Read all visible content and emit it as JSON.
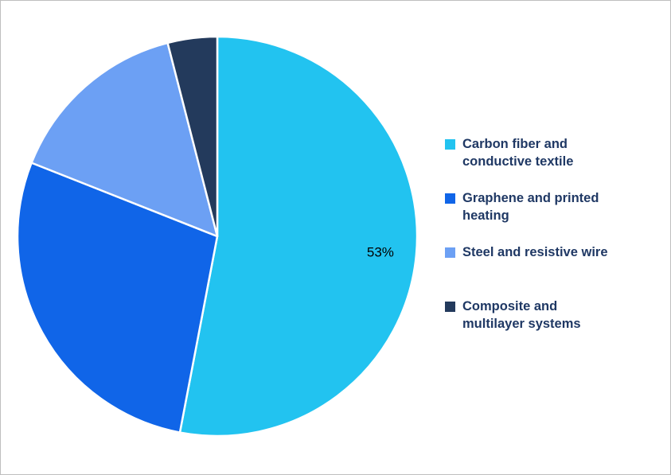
{
  "chart_data": {
    "type": "pie",
    "title": "",
    "start_angle_deg": 0,
    "direction": "clockwise",
    "legend_position": "right",
    "data_label_color": "#000000",
    "slice_border_color": "#ffffff",
    "slices": [
      {
        "label": "Carbon fiber and conductive textile",
        "value": 53,
        "color": "#22C3F0",
        "data_label": "53%"
      },
      {
        "label": "Graphene and printed heating",
        "value": 28,
        "color": "#1065E8",
        "data_label": ""
      },
      {
        "label": "Steel and resistive wire",
        "value": 15,
        "color": "#6CA0F4",
        "data_label": ""
      },
      {
        "label": "Composite and multilayer systems",
        "value": 4,
        "color": "#233A5C",
        "data_label": ""
      }
    ]
  },
  "legend": {
    "text_color": "#1F3864",
    "items": [
      {
        "label": "Carbon fiber and\nconductive textile",
        "color": "#22C3F0"
      },
      {
        "label": "Graphene and printed\nheating",
        "color": "#1065E8"
      },
      {
        "label": "Steel and resistive wire",
        "color": "#6CA0F4"
      },
      {
        "label": "Composite and\nmultilayer systems",
        "color": "#233A5C"
      }
    ]
  }
}
